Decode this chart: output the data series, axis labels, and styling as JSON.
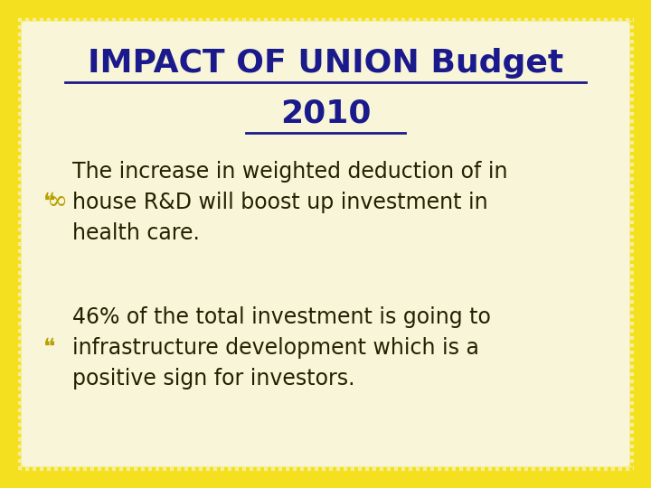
{
  "title_line1": "IMPACT OF UNION Budget",
  "title_line2": "2010",
  "title_color": "#1a1a8c",
  "title_fontsize": 26,
  "bullet1_line1": "The increase in weighted deduction of in",
  "bullet1_line2": "house R&D will boost up investment in",
  "bullet1_line3": "health care.",
  "bullet2_line1": "46% of the total investment is going to",
  "bullet2_line2": "infrastructure development which is a",
  "bullet2_line3": "positive sign for investors.",
  "text_color": "#222200",
  "text_fontsize": 17,
  "bullet_color": "#b8a000",
  "background_color": "#f5ef9a",
  "inner_bg_color": "#f8f5d8",
  "border_color": "#f5e020",
  "border_width": 18
}
